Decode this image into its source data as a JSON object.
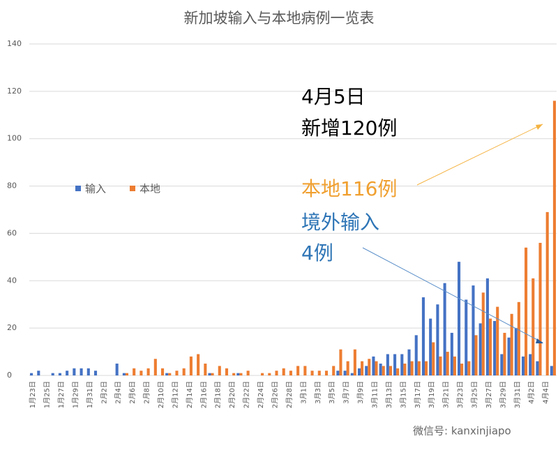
{
  "chart_data": {
    "type": "bar",
    "title": "新加坡输入与本地病例一览表",
    "categories": [
      "1月23日",
      null,
      "1月25日",
      null,
      "1月27日",
      null,
      "1月29日",
      null,
      "1月31日",
      null,
      "2月2日",
      null,
      "2月4日",
      null,
      "2月6日",
      null,
      "2月8日",
      null,
      "2月10日",
      null,
      "2月12日",
      null,
      "2月14日",
      null,
      "2月16日",
      null,
      "2月18日",
      null,
      "2月20日",
      null,
      "2月22日",
      null,
      "2月24日",
      null,
      "2月26日",
      null,
      "2月28日",
      null,
      "3月1日",
      null,
      "3月3日",
      null,
      "3月5日",
      null,
      "3月7日",
      null,
      "3月9日",
      null,
      "3月11日",
      null,
      "3月13日",
      null,
      "3月15日",
      null,
      "3月17日",
      null,
      "3月19日",
      null,
      "3月21日",
      null,
      "3月23日",
      null,
      "3月25日",
      null,
      "3月27日",
      null,
      "3月29日",
      null,
      "3月31日",
      null,
      "4月2日",
      null,
      "4月4日",
      null
    ],
    "series": [
      {
        "name": "输入",
        "color": "#4472c4",
        "values": [
          1,
          2,
          0,
          1,
          1,
          2,
          3,
          3,
          3,
          2,
          0,
          0,
          5,
          1,
          0,
          0,
          0,
          0,
          0,
          1,
          0,
          0,
          0,
          0,
          0,
          1,
          0,
          0,
          0,
          1,
          0,
          0,
          0,
          0,
          0,
          0,
          0,
          0,
          0,
          0,
          0,
          0,
          0,
          2,
          2,
          1,
          3,
          4,
          8,
          5,
          9,
          9,
          9,
          11,
          17,
          33,
          24,
          30,
          39,
          18,
          48,
          32,
          38,
          22,
          41,
          23,
          9,
          16,
          20,
          8,
          9,
          6,
          0,
          4
        ]
      },
      {
        "name": "本地",
        "color": "#ed7d31",
        "values": [
          0,
          0,
          0,
          0,
          0,
          0,
          0,
          0,
          0,
          0,
          0,
          0,
          0,
          1,
          3,
          2,
          3,
          7,
          3,
          1,
          2,
          3,
          8,
          9,
          5,
          1,
          4,
          3,
          1,
          1,
          2,
          0,
          1,
          1,
          2,
          3,
          2,
          4,
          4,
          2,
          2,
          2,
          4,
          11,
          6,
          11,
          6,
          7,
          6,
          4,
          4,
          3,
          5,
          6,
          6,
          6,
          14,
          8,
          10,
          8,
          5,
          6,
          17,
          35,
          24,
          29,
          18,
          26,
          31,
          54,
          41,
          56,
          69,
          116
        ]
      }
    ],
    "ylim": [
      0,
      140
    ],
    "yticks": [
      0,
      20,
      40,
      60,
      80,
      100,
      120,
      140
    ],
    "grid": true,
    "annotations": [
      "4月5日",
      "新增120例",
      "本地116例",
      "境外输入",
      "4例"
    ],
    "footer": "微信号: kanxinjiapo"
  }
}
